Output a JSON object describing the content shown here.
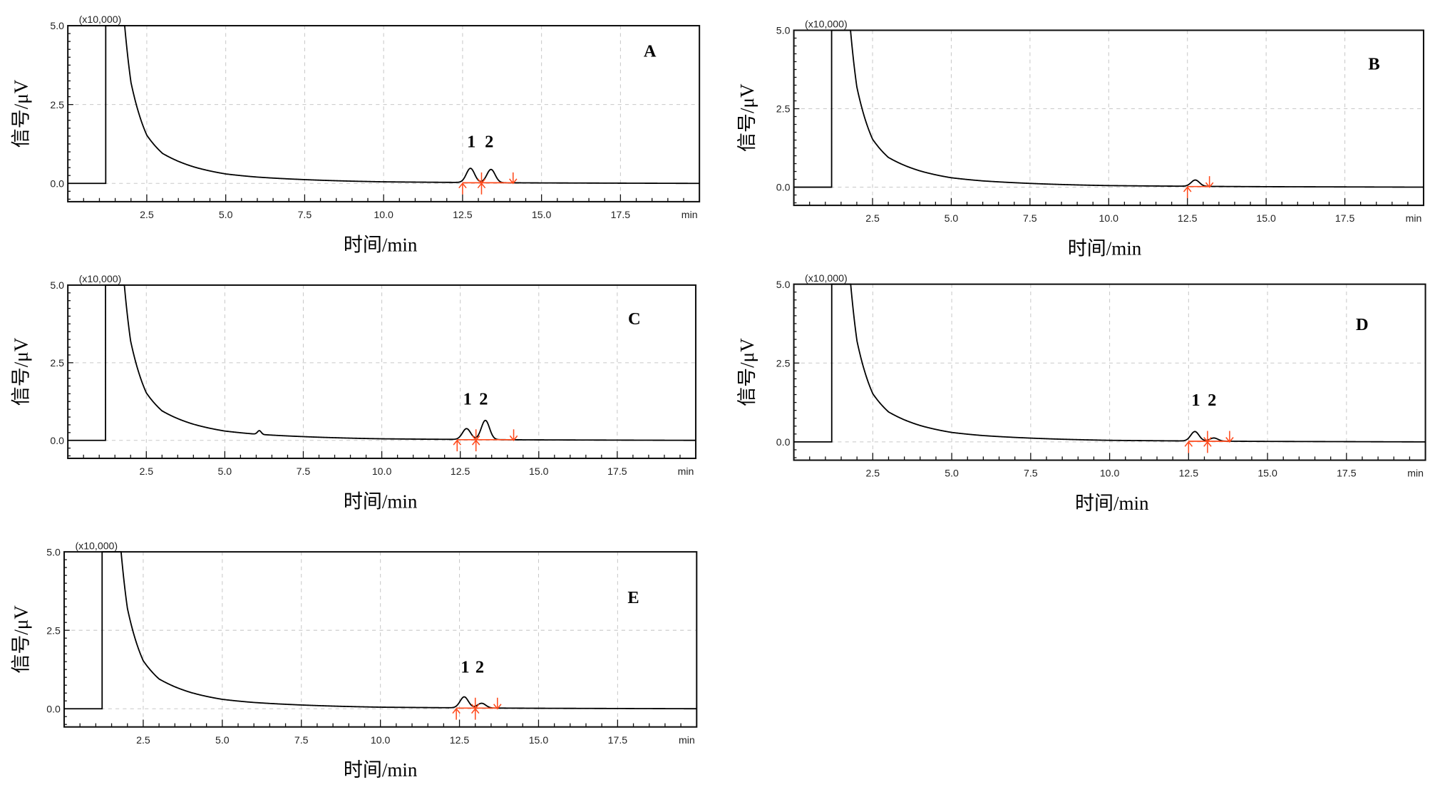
{
  "chart_data": [
    {
      "type": "line",
      "panel": "A",
      "title": "A",
      "xlabel": "时间/min",
      "ylabel": "信号/μV",
      "y_multiplier": "(x10,000)",
      "xlim": [
        0,
        20
      ],
      "ylim": [
        -0.58,
        5.0
      ],
      "xticks": [
        "2.5",
        "5.0",
        "7.5",
        "10.0",
        "12.5",
        "15.0",
        "17.5"
      ],
      "x_unit": "min",
      "yticks": [
        "0.0",
        "2.5",
        "5.0"
      ],
      "peaks": [
        {
          "label": "1",
          "rt": 12.75,
          "height": 0.45
        },
        {
          "label": "2",
          "rt": 13.4,
          "height": 0.42
        }
      ],
      "markers_up": [
        12.5,
        13.1
      ],
      "markers_down": [
        13.1,
        14.1
      ],
      "minor_peaks": []
    },
    {
      "type": "line",
      "panel": "B",
      "title": "B",
      "xlabel": "时间/min",
      "ylabel": "信号/μV",
      "y_multiplier": "(x10,000)",
      "xlim": [
        0,
        20
      ],
      "ylim": [
        -0.58,
        5.0
      ],
      "xticks": [
        "2.5",
        "5.0",
        "7.5",
        "10.0",
        "12.5",
        "15.0",
        "17.5"
      ],
      "x_unit": "min",
      "yticks": [
        "0.0",
        "2.5",
        "5.0"
      ],
      "peaks": [
        {
          "label": "",
          "rt": 12.75,
          "height": 0.2
        }
      ],
      "markers_up": [
        12.5
      ],
      "markers_down": [
        13.2
      ],
      "minor_peaks": []
    },
    {
      "type": "line",
      "panel": "C",
      "title": "C",
      "xlabel": "时间/min",
      "ylabel": "信号/μV",
      "y_multiplier": "(x10,000)",
      "xlim": [
        0,
        20
      ],
      "ylim": [
        -0.58,
        5.0
      ],
      "xticks": [
        "2.5",
        "5.0",
        "7.5",
        "10.0",
        "12.5",
        "15.0",
        "17.5"
      ],
      "x_unit": "min",
      "yticks": [
        "0.0",
        "2.5",
        "5.0"
      ],
      "peaks": [
        {
          "label": "1",
          "rt": 12.7,
          "height": 0.35
        },
        {
          "label": "2",
          "rt": 13.3,
          "height": 0.62
        }
      ],
      "markers_up": [
        12.4,
        13.0
      ],
      "markers_down": [
        13.0,
        14.2
      ],
      "minor_peaks": [
        {
          "rt": 6.1,
          "height": 0.12
        }
      ]
    },
    {
      "type": "line",
      "panel": "D",
      "title": "D",
      "xlabel": "时间/min",
      "ylabel": "信号/μV",
      "y_multiplier": "(x10,000)",
      "xlim": [
        0,
        20
      ],
      "ylim": [
        -0.58,
        5.0
      ],
      "xticks": [
        "2.5",
        "5.0",
        "7.5",
        "10.0",
        "12.5",
        "15.0",
        "17.5"
      ],
      "x_unit": "min",
      "yticks": [
        "0.0",
        "2.5",
        "5.0"
      ],
      "peaks": [
        {
          "label": "1",
          "rt": 12.7,
          "height": 0.3
        },
        {
          "label": "2",
          "rt": 13.3,
          "height": 0.1
        }
      ],
      "markers_up": [
        12.5,
        13.1
      ],
      "markers_down": [
        13.1,
        13.8
      ],
      "minor_peaks": []
    },
    {
      "type": "line",
      "panel": "E",
      "title": "E",
      "xlabel": "时间/min",
      "ylabel": "信号/μV",
      "y_multiplier": "(x10,000)",
      "xlim": [
        0,
        20
      ],
      "ylim": [
        -0.58,
        5.0
      ],
      "xticks": [
        "2.5",
        "5.0",
        "7.5",
        "10.0",
        "12.5",
        "15.0",
        "17.5"
      ],
      "x_unit": "min",
      "yticks": [
        "0.0",
        "2.5",
        "5.0"
      ],
      "peaks": [
        {
          "label": "1",
          "rt": 12.65,
          "height": 0.35
        },
        {
          "label": "2",
          "rt": 13.2,
          "height": 0.15
        }
      ],
      "markers_up": [
        12.4,
        13.0
      ],
      "markers_down": [
        13.0,
        13.7
      ],
      "minor_peaks": []
    }
  ],
  "baseline": {
    "off_scale_start": 1.2,
    "off_scale_end": 1.8,
    "x": [
      1.8,
      2.0,
      2.5,
      3.0,
      3.5,
      4.0,
      5.0,
      6.0,
      7.5,
      10.0,
      12.5,
      15.0,
      20.0
    ],
    "y": [
      5.0,
      3.2,
      1.53,
      0.95,
      0.7,
      0.52,
      0.3,
      0.2,
      0.12,
      0.05,
      0.03,
      0.015,
      0.0
    ]
  },
  "colors": {
    "trace": "#000000",
    "integration": "#ff4a1c",
    "grid": "#c8c8c8"
  }
}
